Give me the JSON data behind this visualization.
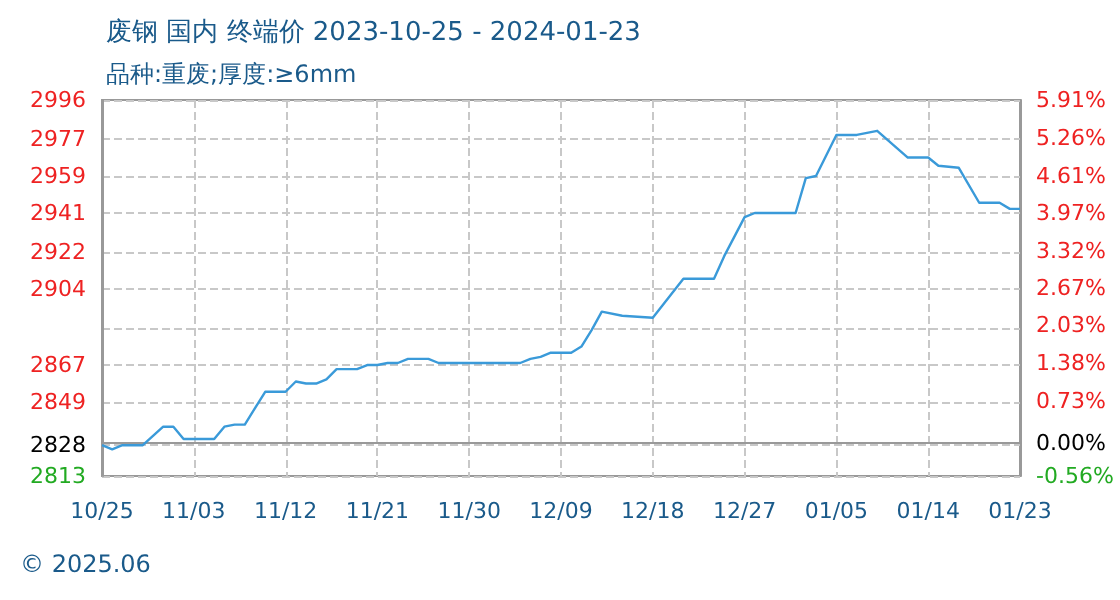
{
  "chart_data": {
    "type": "line",
    "title": "废钢 国内 终端价 2023-10-25 - 2024-01-23",
    "subtitle": "品种:重废;厚度:≥6mm",
    "annotations": [
      "© 2025.06"
    ],
    "x": [
      "2023-10-25",
      "2023-10-26",
      "2023-10-27",
      "2023-10-29",
      "2023-10-31",
      "2023-11-01",
      "2023-11-02",
      "2023-11-05",
      "2023-11-06",
      "2023-11-07",
      "2023-11-08",
      "2023-11-10",
      "2023-11-12",
      "2023-11-13",
      "2023-11-14",
      "2023-11-15",
      "2023-11-16",
      "2023-11-17",
      "2023-11-19",
      "2023-11-20",
      "2023-11-21",
      "2023-11-22",
      "2023-11-23",
      "2023-11-24",
      "2023-11-26",
      "2023-11-27",
      "2023-12-05",
      "2023-12-06",
      "2023-12-07",
      "2023-12-08",
      "2023-12-10",
      "2023-12-11",
      "2023-12-12",
      "2023-12-13",
      "2023-12-15",
      "2023-12-18",
      "2023-12-21",
      "2023-12-24",
      "2023-12-25",
      "2023-12-27",
      "2023-12-28",
      "2024-01-01",
      "2024-01-02",
      "2024-01-03",
      "2024-01-05",
      "2024-01-07",
      "2024-01-09",
      "2024-01-12",
      "2024-01-14",
      "2024-01-15",
      "2024-01-17",
      "2024-01-19",
      "2024-01-21",
      "2024-01-22",
      "2024-01-23"
    ],
    "series": [
      {
        "color": "#3a9ad9",
        "values": [
          2828,
          2826,
          2828,
          2828,
          2837,
          2837,
          2831,
          2831,
          2837,
          2838,
          2838,
          2854,
          2854,
          2859,
          2858,
          2858,
          2860,
          2865,
          2865,
          2867,
          2867,
          2868,
          2868,
          2870,
          2870,
          2868,
          2868,
          2870,
          2871,
          2873,
          2873,
          2876,
          2884,
          2893,
          2891,
          2890,
          2909,
          2909,
          2920,
          2939,
          2941,
          2941,
          2958,
          2959,
          2979,
          2979,
          2981,
          2968,
          2968,
          2964,
          2963,
          2946,
          2946,
          2943,
          2943
        ]
      }
    ],
    "xlim": [
      "2023-10-25",
      "2024-01-23"
    ],
    "xticks": [
      {
        "value": "2023-10-25",
        "label": "10/25"
      },
      {
        "value": "2023-11-03",
        "label": "11/03"
      },
      {
        "value": "2023-11-12",
        "label": "11/12"
      },
      {
        "value": "2023-11-21",
        "label": "11/21"
      },
      {
        "value": "2023-11-30",
        "label": "11/30"
      },
      {
        "value": "2023-12-09",
        "label": "12/09"
      },
      {
        "value": "2023-12-18",
        "label": "12/18"
      },
      {
        "value": "2023-12-27",
        "label": "12/27"
      },
      {
        "value": "2024-01-05",
        "label": "01/05"
      },
      {
        "value": "2024-01-14",
        "label": "01/14"
      },
      {
        "value": "2024-01-23",
        "label": "01/23"
      }
    ],
    "ylim": [
      2813,
      2996
    ],
    "yticks": [
      2813,
      2828,
      2849,
      2867,
      {
        "value": 2885,
        "label": null
      },
      2904,
      2922,
      2941,
      2959,
      2977,
      2996
    ],
    "y2lim": [
      -0.56,
      5.91
    ],
    "y2ticks": [
      {
        "value": -0.56,
        "label": "-0.56%"
      },
      {
        "value": 0,
        "label": "0.00%"
      },
      {
        "value": 0.73,
        "label": "0.73%"
      },
      {
        "value": 1.38,
        "label": "1.38%"
      },
      {
        "value": 2.03,
        "label": "2.03%"
      },
      {
        "value": 2.67,
        "label": "2.67%"
      },
      {
        "value": 3.32,
        "label": "3.32%"
      },
      {
        "value": 3.97,
        "label": "3.97%"
      },
      {
        "value": 4.61,
        "label": "4.61%"
      },
      {
        "value": 5.26,
        "label": "5.26%"
      },
      {
        "value": 5.91,
        "label": "5.91%"
      }
    ],
    "grid": true,
    "marker": "none",
    "line_style": "solid"
  }
}
